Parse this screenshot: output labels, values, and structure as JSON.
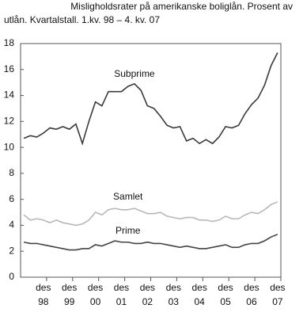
{
  "chart_data": {
    "type": "line",
    "title": [
      "Misligholdsrater på amerikanske boliglån. Prosent av",
      "utlån. Kvartalstall. 1.kv. 98 – 4. kv. 07"
    ],
    "categories": [
      null,
      null,
      null,
      "des 98",
      null,
      null,
      null,
      "des 99",
      null,
      null,
      null,
      "des 00",
      null,
      null,
      null,
      "des 01",
      null,
      null,
      null,
      "des 02",
      null,
      null,
      null,
      "des 03",
      null,
      null,
      null,
      "des 04",
      null,
      null,
      null,
      "des 05",
      null,
      null,
      null,
      "des 06",
      null,
      null,
      null,
      "des 07"
    ],
    "series": [
      {
        "name": "Subprime",
        "color": "#3a3a3a",
        "values": [
          10.7,
          10.9,
          10.8,
          11.1,
          11.5,
          11.4,
          11.6,
          11.4,
          11.8,
          10.3,
          12.0,
          13.5,
          13.2,
          14.3,
          14.3,
          14.3,
          14.7,
          14.9,
          14.4,
          13.2,
          13.0,
          12.4,
          11.7,
          11.5,
          11.6,
          10.5,
          10.7,
          10.3,
          10.6,
          10.3,
          10.8,
          11.6,
          11.5,
          11.7,
          12.6,
          13.3,
          13.8,
          14.8,
          16.3,
          17.3
        ]
      },
      {
        "name": "Samlet",
        "color": "#b8b8b8",
        "values": [
          4.8,
          4.4,
          4.5,
          4.4,
          4.2,
          4.4,
          4.2,
          4.1,
          4.0,
          4.1,
          4.4,
          5.0,
          4.8,
          5.2,
          5.3,
          5.2,
          5.2,
          5.3,
          5.1,
          4.9,
          4.9,
          5.0,
          4.7,
          4.6,
          4.5,
          4.6,
          4.6,
          4.4,
          4.4,
          4.3,
          4.4,
          4.7,
          4.5,
          4.5,
          4.8,
          5.0,
          4.9,
          5.2,
          5.6,
          5.8
        ]
      },
      {
        "name": "Prime",
        "color": "#444444",
        "values": [
          2.7,
          2.6,
          2.6,
          2.5,
          2.4,
          2.3,
          2.2,
          2.1,
          2.1,
          2.2,
          2.2,
          2.5,
          2.4,
          2.6,
          2.8,
          2.7,
          2.7,
          2.6,
          2.6,
          2.7,
          2.6,
          2.6,
          2.5,
          2.4,
          2.3,
          2.4,
          2.3,
          2.2,
          2.2,
          2.3,
          2.4,
          2.5,
          2.3,
          2.3,
          2.5,
          2.6,
          2.6,
          2.8,
          3.1,
          3.3
        ]
      }
    ],
    "ylim": [
      0,
      18
    ],
    "yticks": [
      0,
      2,
      4,
      6,
      8,
      10,
      12,
      14,
      16,
      18
    ],
    "grid": false
  }
}
